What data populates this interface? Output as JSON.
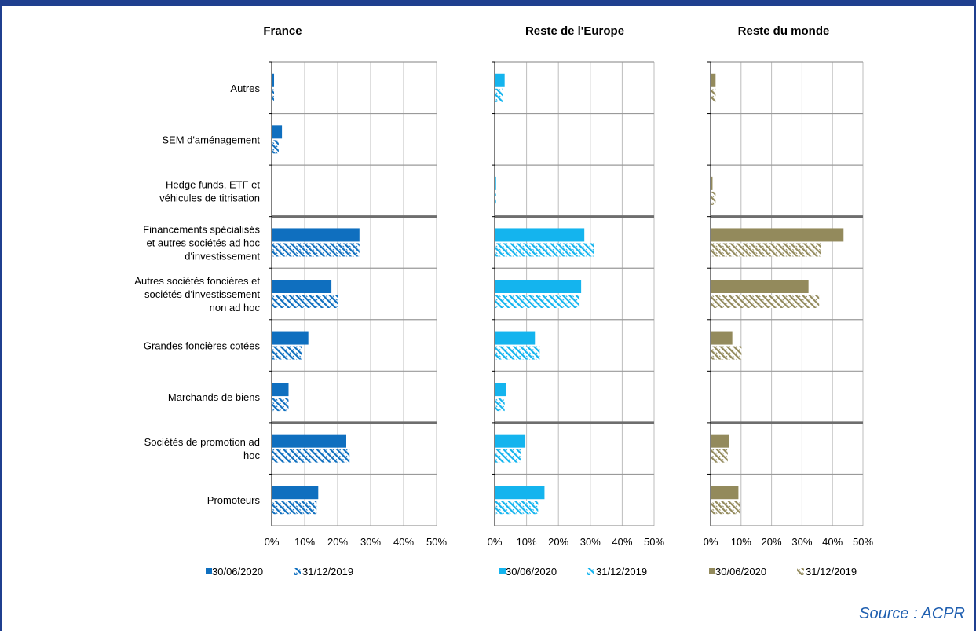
{
  "source": "Source : ACPR",
  "chart_data": {
    "type": "bar",
    "orientation": "horizontal",
    "categories": [
      [
        "Autres"
      ],
      [
        "SEM d'aménagement"
      ],
      [
        "Hedge funds, ETF et",
        "véhicules de titrisation"
      ],
      [
        "Financements spécialisés",
        "et autres sociétés ad hoc",
        "d'investissement"
      ],
      [
        "Autres sociétés foncières et",
        "sociétés d'investissement",
        "non ad hoc"
      ],
      [
        "Grandes foncières cotées"
      ],
      [
        "Marchands de biens"
      ],
      [
        "Sociétés de promotion ad",
        "hoc"
      ],
      [
        "Promoteurs"
      ]
    ],
    "xlim": [
      0,
      50
    ],
    "xticks": [
      "0%",
      "10%",
      "20%",
      "30%",
      "40%",
      "50%"
    ],
    "panels": [
      {
        "title": "France",
        "color": "#0f6fbf",
        "series": [
          {
            "name": "30/06/2020",
            "pattern": "solid",
            "values": [
              0.6,
              3.0,
              0.0,
              26.5,
              18.0,
              11.0,
              5.0,
              22.5,
              14.0
            ]
          },
          {
            "name": "31/12/2019",
            "pattern": "hatched",
            "values": [
              0.6,
              2.0,
              0.0,
              26.5,
              20.0,
              9.0,
              5.0,
              23.5,
              13.5
            ]
          }
        ]
      },
      {
        "title": "Reste de l'Europe",
        "color": "#14b4ee",
        "series": [
          {
            "name": "30/06/2020",
            "pattern": "solid",
            "values": [
              3.0,
              0.0,
              0.3,
              28.0,
              27.0,
              12.5,
              3.5,
              9.5,
              15.5
            ]
          },
          {
            "name": "31/12/2019",
            "pattern": "hatched",
            "values": [
              2.5,
              0.0,
              0.3,
              31.0,
              26.5,
              14.0,
              3.0,
              8.0,
              13.5
            ]
          }
        ]
      },
      {
        "title": "Reste du monde",
        "color": "#938a5c",
        "series": [
          {
            "name": "30/06/2020",
            "pattern": "solid",
            "values": [
              1.5,
              0.0,
              0.5,
              43.5,
              32.0,
              7.0,
              0.0,
              6.0,
              9.0
            ]
          },
          {
            "name": "31/12/2019",
            "pattern": "hatched",
            "values": [
              1.5,
              0.0,
              1.5,
              36.0,
              35.5,
              10.0,
              0.0,
              5.5,
              9.5
            ]
          }
        ]
      }
    ]
  }
}
